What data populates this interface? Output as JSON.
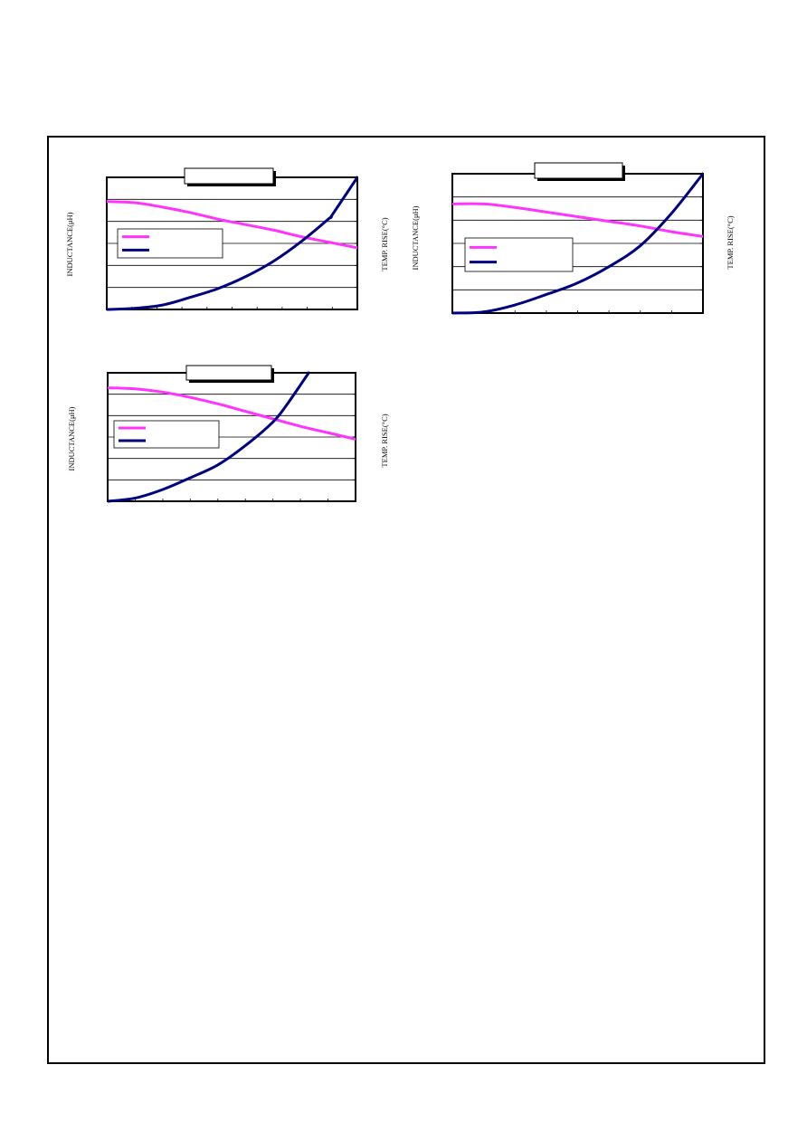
{
  "colors": {
    "inductance": "#ff33ff",
    "temp_rise": "#000080",
    "frame": "#000000"
  },
  "chart_data": [
    {
      "type": "line",
      "title": "",
      "ylabel": "INDUCTANCE(μH)",
      "y2label": "TEMP. RISE(°C)",
      "xlabel": "",
      "xlim": [
        0,
        9
      ],
      "ylim": [
        0,
        6
      ],
      "y2lim": [
        0,
        6
      ],
      "grid": true,
      "legend_position": "middle-left",
      "series": [
        {
          "axis": "left",
          "values": [
            [
              0,
              4.9
            ],
            [
              1,
              4.85
            ],
            [
              2,
              4.65
            ],
            [
              3,
              4.4
            ],
            [
              4,
              4.1
            ],
            [
              5,
              3.85
            ],
            [
              6,
              3.6
            ],
            [
              7,
              3.3
            ],
            [
              8,
              3.05
            ],
            [
              9,
              2.8
            ]
          ]
        },
        {
          "axis": "right",
          "values": [
            [
              0,
              0
            ],
            [
              1,
              0.05
            ],
            [
              2,
              0.2
            ],
            [
              3,
              0.55
            ],
            [
              4,
              0.95
            ],
            [
              5,
              1.5
            ],
            [
              6,
              2.2
            ],
            [
              7,
              3.1
            ],
            [
              8,
              4.15
            ],
            [
              8.1,
              4.3
            ],
            [
              9,
              6.0
            ]
          ]
        }
      ]
    },
    {
      "type": "line",
      "title": "",
      "ylabel": "INDUCTANCE(μH)",
      "y2label": "TEMP. RISE(°C)",
      "xlabel": "",
      "xlim": [
        0,
        8
      ],
      "ylim": [
        0,
        6
      ],
      "y2lim": [
        0,
        6
      ],
      "grid": true,
      "legend_position": "middle-left",
      "series": [
        {
          "axis": "left",
          "values": [
            [
              0,
              4.7
            ],
            [
              1,
              4.7
            ],
            [
              2,
              4.55
            ],
            [
              3,
              4.35
            ],
            [
              4,
              4.15
            ],
            [
              5,
              3.95
            ],
            [
              6,
              3.75
            ],
            [
              7,
              3.5
            ],
            [
              8,
              3.3
            ]
          ]
        },
        {
          "axis": "right",
          "values": [
            [
              0,
              0
            ],
            [
              1,
              0.05
            ],
            [
              2,
              0.35
            ],
            [
              3,
              0.8
            ],
            [
              4,
              1.3
            ],
            [
              5,
              2.0
            ],
            [
              6,
              2.9
            ],
            [
              7,
              4.3
            ],
            [
              8,
              6.0
            ]
          ]
        }
      ]
    },
    {
      "type": "line",
      "title": "",
      "ylabel": "INDUCTANCE(μH)",
      "y2label": "TEMP. RISE(°C)",
      "xlabel": "",
      "xlim": [
        0,
        9
      ],
      "ylim": [
        0,
        6
      ],
      "y2lim": [
        0,
        6
      ],
      "grid": true,
      "legend_position": "middle-left",
      "series": [
        {
          "axis": "left",
          "values": [
            [
              0,
              5.3
            ],
            [
              1,
              5.25
            ],
            [
              2,
              5.1
            ],
            [
              3,
              4.85
            ],
            [
              4,
              4.55
            ],
            [
              5,
              4.2
            ],
            [
              6,
              3.85
            ],
            [
              7,
              3.5
            ],
            [
              8,
              3.2
            ],
            [
              9,
              2.9
            ]
          ]
        },
        {
          "axis": "right",
          "values": [
            [
              0,
              0
            ],
            [
              1,
              0.15
            ],
            [
              2,
              0.55
            ],
            [
              3,
              1.1
            ],
            [
              4,
              1.7
            ],
            [
              5,
              2.6
            ],
            [
              6,
              3.7
            ],
            [
              6.5,
              4.5
            ],
            [
              7.3,
              6.0
            ]
          ]
        }
      ]
    }
  ]
}
